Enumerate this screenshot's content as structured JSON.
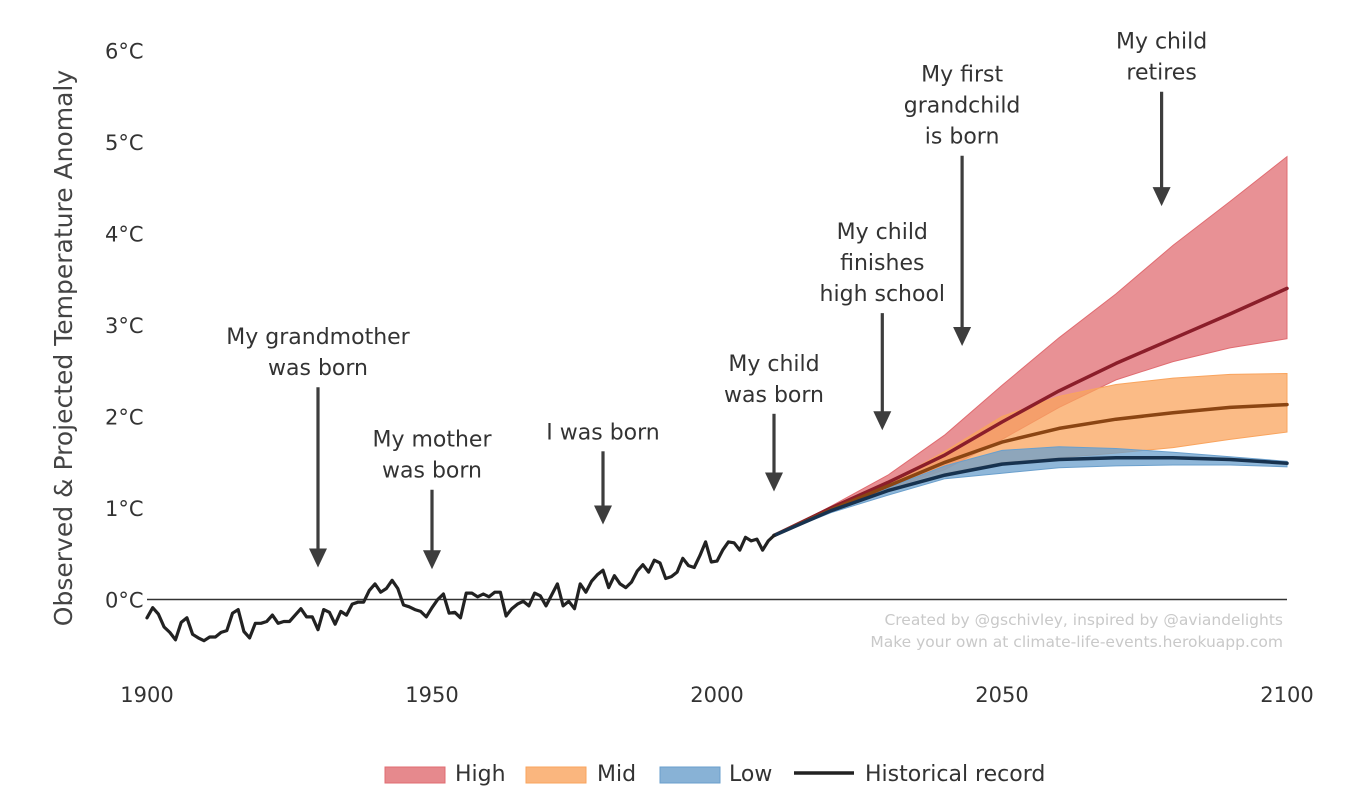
{
  "chart_data": {
    "type": "area",
    "xlabel": "",
    "ylabel": "Observed & Projected Temperature Anomaly",
    "xlim": [
      1900,
      2100
    ],
    "ylim": [
      -0.6,
      6
    ],
    "x_ticks": [
      {
        "value": 1900,
        "label": "1900"
      },
      {
        "value": 1950,
        "label": "1950"
      },
      {
        "value": 2000,
        "label": "2000"
      },
      {
        "value": 2050,
        "label": "2050"
      },
      {
        "value": 2100,
        "label": "2100"
      }
    ],
    "y_ticks": [
      {
        "value": 0,
        "label": "0°C"
      },
      {
        "value": 1,
        "label": "1°C"
      },
      {
        "value": 2,
        "label": "2°C"
      },
      {
        "value": 3,
        "label": "3°C"
      },
      {
        "value": 4,
        "label": "4°C"
      },
      {
        "value": 5,
        "label": "5°C"
      },
      {
        "value": 6,
        "label": "6°C"
      }
    ],
    "zero_line": true,
    "grid": false,
    "legend_position": "bottom-center",
    "historical": {
      "name": "Historical record",
      "color": "#222222",
      "x": [
        1900,
        1901,
        1902,
        1903,
        1904,
        1905,
        1906,
        1907,
        1908,
        1909,
        1910,
        1911,
        1912,
        1913,
        1914,
        1915,
        1916,
        1917,
        1918,
        1919,
        1920,
        1921,
        1922,
        1923,
        1924,
        1925,
        1926,
        1927,
        1928,
        1929,
        1930,
        1931,
        1932,
        1933,
        1934,
        1935,
        1936,
        1937,
        1938,
        1939,
        1940,
        1941,
        1942,
        1943,
        1944,
        1945,
        1946,
        1947,
        1948,
        1949,
        1950,
        1951,
        1952,
        1953,
        1954,
        1955,
        1956,
        1957,
        1958,
        1959,
        1960,
        1961,
        1962,
        1963,
        1964,
        1965,
        1966,
        1967,
        1968,
        1969,
        1970,
        1971,
        1972,
        1973,
        1974,
        1975,
        1976,
        1977,
        1978,
        1979,
        1980,
        1981,
        1982,
        1983,
        1984,
        1985,
        1986,
        1987,
        1988,
        1989,
        1990,
        1991,
        1992,
        1993,
        1994,
        1995,
        1996,
        1997,
        1998,
        1999,
        2000,
        2001,
        2002,
        2003,
        2004,
        2005,
        2006,
        2007,
        2008,
        2009,
        2010
      ],
      "y": [
        -0.2,
        -0.09,
        -0.16,
        -0.3,
        -0.36,
        -0.44,
        -0.25,
        -0.2,
        -0.38,
        -0.42,
        -0.45,
        -0.41,
        -0.41,
        -0.36,
        -0.34,
        -0.15,
        -0.11,
        -0.35,
        -0.42,
        -0.26,
        -0.26,
        -0.24,
        -0.17,
        -0.26,
        -0.24,
        -0.24,
        -0.17,
        -0.1,
        -0.19,
        -0.19,
        -0.33,
        -0.11,
        -0.14,
        -0.27,
        -0.13,
        -0.17,
        -0.05,
        -0.03,
        -0.03,
        0.1,
        0.17,
        0.08,
        0.12,
        0.21,
        0.12,
        -0.06,
        -0.08,
        -0.11,
        -0.13,
        -0.19,
        -0.09,
        0.0,
        0.06,
        -0.15,
        -0.14,
        -0.2,
        0.07,
        0.07,
        0.03,
        0.06,
        0.03,
        0.08,
        0.08,
        -0.18,
        -0.1,
        -0.05,
        -0.02,
        -0.07,
        0.07,
        0.04,
        -0.07,
        0.05,
        0.17,
        -0.07,
        -0.02,
        -0.1,
        0.17,
        0.08,
        0.2,
        0.27,
        0.32,
        0.13,
        0.26,
        0.17,
        0.13,
        0.19,
        0.31,
        0.38,
        0.3,
        0.43,
        0.4,
        0.23,
        0.25,
        0.3,
        0.45,
        0.37,
        0.35,
        0.48,
        0.63,
        0.41,
        0.42,
        0.54,
        0.63,
        0.62,
        0.54,
        0.68,
        0.64,
        0.66,
        0.54,
        0.64,
        0.7
      ]
    },
    "projections": [
      {
        "name": "High",
        "fill_color": "#e06c71",
        "line_color": "#8b1e2a",
        "x": [
          2010,
          2020,
          2030,
          2040,
          2050,
          2060,
          2070,
          2080,
          2090,
          2100
        ],
        "mean": [
          0.7,
          1.0,
          1.28,
          1.58,
          1.94,
          2.28,
          2.58,
          2.85,
          3.12,
          3.4
        ],
        "upper": [
          0.7,
          1.02,
          1.36,
          1.8,
          2.34,
          2.86,
          3.34,
          3.87,
          4.35,
          4.84
        ],
        "lower": [
          0.7,
          0.96,
          1.2,
          1.42,
          1.75,
          2.1,
          2.4,
          2.6,
          2.75,
          2.85
        ]
      },
      {
        "name": "Mid",
        "fill_color": "#f9a45e",
        "line_color": "#8b4513",
        "x": [
          2010,
          2020,
          2030,
          2040,
          2050,
          2060,
          2070,
          2080,
          2090,
          2100
        ],
        "mean": [
          0.7,
          0.98,
          1.24,
          1.5,
          1.72,
          1.87,
          1.97,
          2.04,
          2.1,
          2.13
        ],
        "upper": [
          0.7,
          0.99,
          1.27,
          1.62,
          2.0,
          2.22,
          2.35,
          2.42,
          2.46,
          2.47
        ],
        "lower": [
          0.7,
          0.96,
          1.19,
          1.38,
          1.5,
          1.55,
          1.6,
          1.66,
          1.75,
          1.83
        ]
      },
      {
        "name": "Low",
        "fill_color": "#6a9fcc",
        "line_color": "#17324f",
        "x": [
          2010,
          2020,
          2030,
          2040,
          2050,
          2060,
          2070,
          2080,
          2090,
          2100
        ],
        "mean": [
          0.7,
          0.97,
          1.19,
          1.36,
          1.48,
          1.53,
          1.55,
          1.55,
          1.53,
          1.49
        ],
        "upper": [
          0.7,
          0.98,
          1.22,
          1.46,
          1.63,
          1.67,
          1.65,
          1.61,
          1.56,
          1.51
        ],
        "lower": [
          0.7,
          0.95,
          1.14,
          1.32,
          1.38,
          1.44,
          1.46,
          1.47,
          1.47,
          1.45
        ]
      }
    ],
    "annotations": [
      {
        "lines": [
          "My grandmother",
          "was born"
        ],
        "x": 1930,
        "arrow_from": 2.32,
        "arrow_to": 0.35
      },
      {
        "lines": [
          "My mother",
          "was born"
        ],
        "x": 1950,
        "arrow_from": 1.2,
        "arrow_to": 0.33
      },
      {
        "lines": [
          "I was born"
        ],
        "x": 1980,
        "arrow_from": 1.62,
        "arrow_to": 0.82
      },
      {
        "lines": [
          "My child",
          "was born"
        ],
        "x": 2010,
        "arrow_from": 2.03,
        "arrow_to": 1.18
      },
      {
        "lines": [
          "My child",
          "finishes",
          "high school"
        ],
        "x": 2029,
        "arrow_from": 3.13,
        "arrow_to": 1.85
      },
      {
        "lines": [
          "My first",
          "grandchild",
          "is born"
        ],
        "x": 2043,
        "arrow_from": 4.85,
        "arrow_to": 2.77
      },
      {
        "lines": [
          "My child",
          "retires"
        ],
        "x": 2078,
        "arrow_from": 5.55,
        "arrow_to": 4.3
      }
    ],
    "credit_lines": [
      "Created by @gschivley, inspired by @aviandelights",
      "Make your own at climate-life-events.herokuapp.com"
    ],
    "legend": [
      {
        "label": "High",
        "kind": "area",
        "color": "#e06c71"
      },
      {
        "label": "Mid",
        "kind": "area",
        "color": "#f9a45e"
      },
      {
        "label": "Low",
        "kind": "area",
        "color": "#6a9fcc"
      },
      {
        "label": "Historical record",
        "kind": "line",
        "color": "#222222"
      }
    ],
    "colors": {
      "text": "#333333",
      "axis_line": "#333333",
      "arrow": "#3d3d3d",
      "credit": "#c9c9c9"
    }
  }
}
